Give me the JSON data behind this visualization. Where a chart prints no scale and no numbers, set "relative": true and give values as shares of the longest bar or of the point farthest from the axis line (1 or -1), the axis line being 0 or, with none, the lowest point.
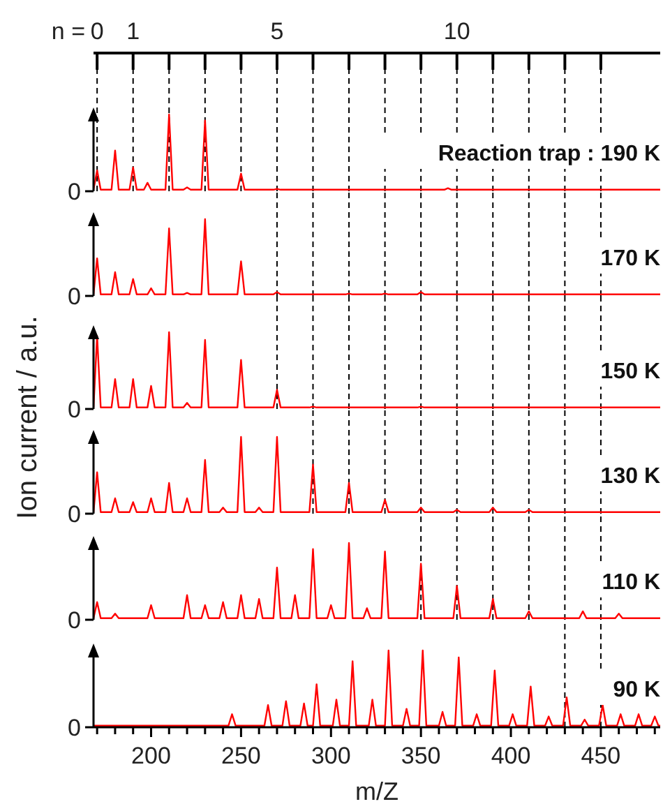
{
  "chart_data": [
    {
      "type": "line",
      "title": "Reaction trap : 190 K",
      "ylabel": "Ion current / a.u.",
      "x2label": "n =",
      "relative": true,
      "tick_labels": false,
      "color": "#ff0000",
      "annotations": [
        "0"
      ],
      "xlim": [
        168,
        483
      ],
      "x2lim": [
        -0.1,
        15.65
      ],
      "x2ticks": [
        0,
        1,
        {
          "value": 2,
          "label": null
        },
        {
          "value": 3,
          "label": null
        },
        {
          "value": 4,
          "label": null
        },
        5,
        {
          "value": 6,
          "label": null
        },
        {
          "value": 7,
          "label": null
        },
        {
          "value": 8,
          "label": null
        },
        {
          "value": 9,
          "label": null
        },
        10,
        {
          "value": 11,
          "label": null
        },
        {
          "value": 12,
          "label": null
        },
        {
          "value": 13,
          "label": null
        },
        {
          "value": 14,
          "label": null
        }
      ],
      "x": [
        168,
        170,
        172,
        178,
        180,
        182,
        188,
        190,
        192,
        196,
        198,
        200,
        208,
        210,
        212,
        218,
        220,
        222,
        228,
        230,
        232,
        248,
        250,
        252,
        268,
        270,
        272,
        363,
        365,
        367,
        483
      ],
      "values": [
        0.02,
        0.27,
        0.02,
        0.02,
        0.53,
        0.02,
        0.02,
        0.31,
        0.02,
        0.02,
        0.11,
        0.02,
        0.02,
        1,
        0.02,
        0.02,
        0.05,
        0.02,
        0.02,
        0.92,
        0.02,
        0.02,
        0.23,
        0.02,
        0.02,
        0.03,
        0.02,
        0.02,
        0.04,
        0.02,
        0.02
      ],
      "ref_lines": [
        {
          "axis": "x",
          "value": 170,
          "color": "#000000",
          "line_style": "dashed"
        },
        {
          "axis": "x",
          "value": 190,
          "color": "#000000",
          "line_style": "dashed"
        },
        {
          "axis": "x",
          "value": 210,
          "color": "#000000",
          "line_style": "dashed"
        },
        {
          "axis": "x",
          "value": 230,
          "color": "#000000",
          "line_style": "dashed"
        },
        {
          "axis": "x",
          "value": 250,
          "color": "#000000",
          "line_style": "dashed"
        },
        {
          "axis": "x",
          "value": 270,
          "color": "#000000",
          "line_style": "dashed"
        },
        {
          "axis": "x",
          "value": 290,
          "color": "#000000",
          "line_style": "dashed"
        },
        {
          "axis": "x",
          "value": 310,
          "color": "#000000",
          "line_style": "dashed"
        },
        {
          "axis": "x",
          "value": 330,
          "color": "#000000",
          "line_style": "dashed"
        },
        {
          "axis": "x",
          "value": 350,
          "color": "#000000",
          "line_style": "dashed"
        },
        {
          "axis": "x",
          "value": 370,
          "color": "#000000",
          "line_style": "dashed"
        },
        {
          "axis": "x",
          "value": 390,
          "color": "#000000",
          "line_style": "dashed"
        },
        {
          "axis": "x",
          "value": 410,
          "color": "#000000",
          "line_style": "dashed"
        },
        {
          "axis": "x",
          "value": 430,
          "color": "#000000",
          "line_style": "dashed"
        },
        {
          "axis": "x",
          "value": 450,
          "color": "#000000",
          "line_style": "dashed"
        }
      ]
    },
    {
      "type": "line",
      "title": "170 K",
      "relative": true,
      "tick_labels": false,
      "color": "#ff0000",
      "annotations": [
        "0"
      ],
      "xlim": [
        168,
        483
      ],
      "x": [
        168,
        170,
        172,
        178,
        180,
        182,
        188,
        190,
        192,
        198,
        200,
        202,
        208,
        210,
        212,
        218,
        220,
        222,
        228,
        230,
        232,
        248,
        250,
        252,
        268,
        270,
        272,
        308,
        310,
        312,
        328,
        330,
        332,
        348,
        350,
        352,
        483
      ],
      "values": [
        0.02,
        0.49,
        0.02,
        0.02,
        0.31,
        0.02,
        0.02,
        0.22,
        0.02,
        0.02,
        0.1,
        0.02,
        0.02,
        0.88,
        0.02,
        0.02,
        0.04,
        0.02,
        0.02,
        1,
        0.02,
        0.02,
        0.45,
        0.02,
        0.02,
        0.05,
        0.02,
        0.02,
        0.03,
        0.02,
        0.02,
        0.03,
        0.02,
        0.02,
        0.05,
        0.02,
        0.02
      ],
      "ref_lines": [
        {
          "axis": "x",
          "value": 270,
          "color": "#000000",
          "line_style": "dashed"
        },
        {
          "axis": "x",
          "value": 290,
          "color": "#000000",
          "line_style": "dashed"
        },
        {
          "axis": "x",
          "value": 310,
          "color": "#000000",
          "line_style": "dashed"
        },
        {
          "axis": "x",
          "value": 330,
          "color": "#000000",
          "line_style": "dashed"
        },
        {
          "axis": "x",
          "value": 350,
          "color": "#000000",
          "line_style": "dashed"
        },
        {
          "axis": "x",
          "value": 370,
          "color": "#000000",
          "line_style": "dashed"
        },
        {
          "axis": "x",
          "value": 390,
          "color": "#000000",
          "line_style": "dashed"
        },
        {
          "axis": "x",
          "value": 410,
          "color": "#000000",
          "line_style": "dashed"
        },
        {
          "axis": "x",
          "value": 430,
          "color": "#000000",
          "line_style": "dashed"
        },
        {
          "axis": "x",
          "value": 450,
          "color": "#000000",
          "line_style": "dashed"
        }
      ]
    },
    {
      "type": "line",
      "title": "150 K",
      "relative": true,
      "tick_labels": false,
      "color": "#ff0000",
      "annotations": [
        "0"
      ],
      "xlim": [
        168,
        483
      ],
      "x": [
        168,
        170,
        172,
        178,
        180,
        182,
        188,
        190,
        192,
        198,
        200,
        202,
        208,
        210,
        212,
        218,
        220,
        222,
        228,
        230,
        232,
        248,
        250,
        252,
        268,
        270,
        272,
        288,
        290,
        292,
        348,
        350,
        352,
        483
      ],
      "values": [
        0.02,
        0.95,
        0.02,
        0.02,
        0.39,
        0.02,
        0.02,
        0.39,
        0.02,
        0.02,
        0.3,
        0.02,
        0.02,
        1,
        0.02,
        0.02,
        0.08,
        0.02,
        0.02,
        0.9,
        0.02,
        0.02,
        0.64,
        0.02,
        0.02,
        0.25,
        0.02,
        0.02,
        0.03,
        0.02,
        0.02,
        0.03,
        0.02,
        0.02
      ],
      "ref_lines": [
        {
          "axis": "x",
          "value": 270,
          "color": "#000000",
          "line_style": "dashed"
        },
        {
          "axis": "x",
          "value": 290,
          "color": "#000000",
          "line_style": "dashed"
        },
        {
          "axis": "x",
          "value": 310,
          "color": "#000000",
          "line_style": "dashed"
        },
        {
          "axis": "x",
          "value": 330,
          "color": "#000000",
          "line_style": "dashed"
        },
        {
          "axis": "x",
          "value": 350,
          "color": "#000000",
          "line_style": "dashed"
        },
        {
          "axis": "x",
          "value": 370,
          "color": "#000000",
          "line_style": "dashed"
        },
        {
          "axis": "x",
          "value": 390,
          "color": "#000000",
          "line_style": "dashed"
        },
        {
          "axis": "x",
          "value": 410,
          "color": "#000000",
          "line_style": "dashed"
        },
        {
          "axis": "x",
          "value": 430,
          "color": "#000000",
          "line_style": "dashed"
        },
        {
          "axis": "x",
          "value": 450,
          "color": "#000000",
          "line_style": "dashed"
        }
      ]
    },
    {
      "type": "line",
      "title": "130 K",
      "relative": true,
      "tick_labels": false,
      "color": "#ff0000",
      "annotations": [
        "0"
      ],
      "xlim": [
        168,
        483
      ],
      "x": [
        168,
        170,
        172,
        178,
        180,
        182,
        188,
        190,
        192,
        198,
        200,
        202,
        208,
        210,
        212,
        218,
        220,
        222,
        228,
        230,
        232,
        238,
        240,
        242,
        248,
        250,
        252,
        258,
        260,
        262,
        268,
        270,
        272,
        288,
        290,
        292,
        308,
        310,
        312,
        328,
        330,
        332,
        348,
        350,
        352,
        368,
        370,
        372,
        388,
        390,
        392,
        408,
        410,
        412,
        483
      ],
      "values": [
        0.02,
        0.54,
        0.02,
        0.02,
        0.2,
        0.02,
        0.02,
        0.15,
        0.02,
        0.02,
        0.2,
        0.02,
        0.02,
        0.4,
        0.02,
        0.02,
        0.2,
        0.02,
        0.02,
        0.7,
        0.02,
        0.02,
        0.08,
        0.02,
        0.02,
        1,
        0.02,
        0.02,
        0.08,
        0.02,
        0.02,
        1,
        0.02,
        0.02,
        0.64,
        0.02,
        0.02,
        0.4,
        0.02,
        0.02,
        0.18,
        0.02,
        0.02,
        0.08,
        0.02,
        0.02,
        0.05,
        0.02,
        0.02,
        0.08,
        0.02,
        0.02,
        0.05,
        0.02,
        0.02
      ],
      "ref_lines": [
        {
          "axis": "x",
          "value": 290,
          "color": "#000000",
          "line_style": "dashed"
        },
        {
          "axis": "x",
          "value": 310,
          "color": "#000000",
          "line_style": "dashed"
        },
        {
          "axis": "x",
          "value": 330,
          "color": "#000000",
          "line_style": "dashed"
        },
        {
          "axis": "x",
          "value": 350,
          "color": "#000000",
          "line_style": "dashed"
        },
        {
          "axis": "x",
          "value": 370,
          "color": "#000000",
          "line_style": "dashed"
        },
        {
          "axis": "x",
          "value": 390,
          "color": "#000000",
          "line_style": "dashed"
        },
        {
          "axis": "x",
          "value": 410,
          "color": "#000000",
          "line_style": "dashed"
        },
        {
          "axis": "x",
          "value": 430,
          "color": "#000000",
          "line_style": "dashed"
        },
        {
          "axis": "x",
          "value": 450,
          "color": "#000000",
          "line_style": "dashed"
        }
      ]
    },
    {
      "type": "line",
      "title": "110 K",
      "relative": true,
      "tick_labels": false,
      "color": "#ff0000",
      "annotations": [
        "0"
      ],
      "xlim": [
        168,
        483
      ],
      "x": [
        168,
        170,
        172,
        178,
        180,
        182,
        198,
        200,
        202,
        218,
        220,
        222,
        228,
        230,
        232,
        238,
        240,
        242,
        248,
        250,
        252,
        258,
        260,
        262,
        268,
        270,
        272,
        278,
        280,
        282,
        288,
        290,
        292,
        298,
        300,
        302,
        308,
        310,
        312,
        318,
        320,
        322,
        328,
        330,
        332,
        348,
        350,
        352,
        368,
        370,
        372,
        388,
        390,
        392,
        408,
        410,
        412,
        438,
        440,
        442,
        458,
        460,
        462,
        483
      ],
      "values": [
        0.02,
        0.23,
        0.02,
        0.02,
        0.08,
        0.02,
        0.02,
        0.19,
        0.02,
        0.02,
        0.32,
        0.02,
        0.02,
        0.19,
        0.02,
        0.02,
        0.23,
        0.02,
        0.02,
        0.32,
        0.02,
        0.02,
        0.27,
        0.02,
        0.02,
        0.68,
        0.02,
        0.02,
        0.32,
        0.02,
        0.02,
        0.92,
        0.02,
        0.02,
        0.19,
        0.02,
        0.02,
        1,
        0.02,
        0.02,
        0.15,
        0.02,
        0.02,
        0.89,
        0.02,
        0.02,
        0.73,
        0.02,
        0.02,
        0.44,
        0.02,
        0.02,
        0.27,
        0.02,
        0.02,
        0.11,
        0.02,
        0.02,
        0.11,
        0.02,
        0.02,
        0.08,
        0.02,
        0.02
      ],
      "ref_lines": [
        {
          "axis": "x",
          "value": 350,
          "color": "#000000",
          "line_style": "dashed"
        },
        {
          "axis": "x",
          "value": 370,
          "color": "#000000",
          "line_style": "dashed"
        },
        {
          "axis": "x",
          "value": 390,
          "color": "#000000",
          "line_style": "dashed"
        },
        {
          "axis": "x",
          "value": 410,
          "color": "#000000",
          "line_style": "dashed"
        },
        {
          "axis": "x",
          "value": 430,
          "color": "#000000",
          "line_style": "dashed"
        },
        {
          "axis": "x",
          "value": 450,
          "color": "#000000",
          "line_style": "dashed"
        }
      ]
    },
    {
      "type": "line",
      "title": "90 K",
      "xlabel": "m/Z",
      "relative": true,
      "tick_labels": "x",
      "color": "#ff0000",
      "annotations": [
        "0"
      ],
      "xlim": [
        168,
        483
      ],
      "xticks": [
        {
          "value": 170,
          "label": null
        },
        {
          "value": 180,
          "label": null
        },
        {
          "value": 190,
          "label": null
        },
        200,
        {
          "value": 210,
          "label": null
        },
        {
          "value": 220,
          "label": null
        },
        {
          "value": 230,
          "label": null
        },
        {
          "value": 240,
          "label": null
        },
        250,
        {
          "value": 260,
          "label": null
        },
        {
          "value": 270,
          "label": null
        },
        {
          "value": 280,
          "label": null
        },
        {
          "value": 290,
          "label": null
        },
        300,
        {
          "value": 310,
          "label": null
        },
        {
          "value": 320,
          "label": null
        },
        {
          "value": 330,
          "label": null
        },
        {
          "value": 340,
          "label": null
        },
        350,
        {
          "value": 360,
          "label": null
        },
        {
          "value": 370,
          "label": null
        },
        {
          "value": 380,
          "label": null
        },
        {
          "value": 390,
          "label": null
        },
        400,
        {
          "value": 410,
          "label": null
        },
        {
          "value": 420,
          "label": null
        },
        {
          "value": 430,
          "label": null
        },
        {
          "value": 440,
          "label": null
        },
        450,
        {
          "value": 460,
          "label": null
        },
        {
          "value": 470,
          "label": null
        },
        {
          "value": 480,
          "label": null
        }
      ],
      "x": [
        168,
        243,
        245,
        247,
        263,
        265,
        267,
        273,
        275,
        277,
        283,
        285,
        287,
        290,
        292,
        294,
        301,
        303,
        305,
        310,
        312,
        314,
        321,
        323,
        325,
        330,
        332,
        334,
        340,
        342,
        344,
        349,
        351,
        353,
        360,
        362,
        364,
        369,
        371,
        373,
        379,
        381,
        383,
        389,
        391,
        393,
        399,
        401,
        403,
        409,
        411,
        413,
        419,
        421,
        423,
        429,
        431,
        433,
        439,
        441,
        443,
        449,
        451,
        453,
        459,
        461,
        463,
        469,
        471,
        473,
        478,
        480,
        482,
        483
      ],
      "values": [
        0.02,
        0.02,
        0.17,
        0.02,
        0.02,
        0.29,
        0.02,
        0.02,
        0.34,
        0.02,
        0.02,
        0.31,
        0.02,
        0.02,
        0.56,
        0.02,
        0.02,
        0.36,
        0.02,
        0.02,
        0.86,
        0.02,
        0.02,
        0.36,
        0.02,
        0.02,
        1,
        0.02,
        0.02,
        0.24,
        0.02,
        0.02,
        1,
        0.02,
        0.02,
        0.2,
        0.02,
        0.02,
        0.91,
        0.02,
        0.02,
        0.17,
        0.02,
        0.02,
        0.74,
        0.02,
        0.02,
        0.17,
        0.02,
        0.02,
        0.53,
        0.02,
        0.02,
        0.14,
        0.02,
        0.02,
        0.39,
        0.02,
        0.02,
        0.1,
        0.02,
        0.02,
        0.29,
        0.02,
        0.02,
        0.17,
        0.02,
        0.02,
        0.17,
        0.02,
        0.02,
        0.14,
        0.02,
        0.02
      ],
      "ref_lines": [
        {
          "axis": "x",
          "value": 430,
          "color": "#000000",
          "line_style": "dashed"
        },
        {
          "axis": "x",
          "value": 450,
          "color": "#000000",
          "line_style": "dashed"
        }
      ]
    }
  ]
}
